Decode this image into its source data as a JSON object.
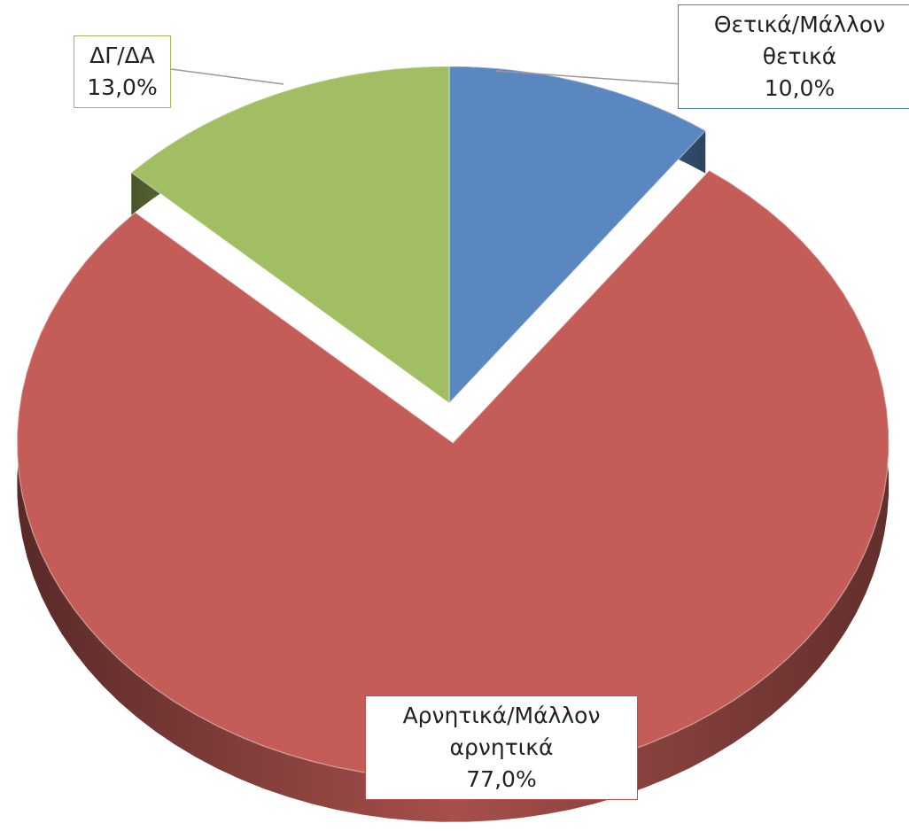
{
  "chart_data": {
    "type": "pie",
    "categories": [
      "Θετικά/Μάλλον θετικά",
      "Αρνητικά/Μάλλον αρνητικά",
      "ΔΓ/ΔΑ"
    ],
    "values": [
      10,
      77,
      13
    ],
    "value_labels": [
      "10,0%",
      "77,0%",
      "13,0%"
    ],
    "colors": [
      "#5a87bf",
      "#c45d58",
      "#a1be62"
    ]
  }
}
